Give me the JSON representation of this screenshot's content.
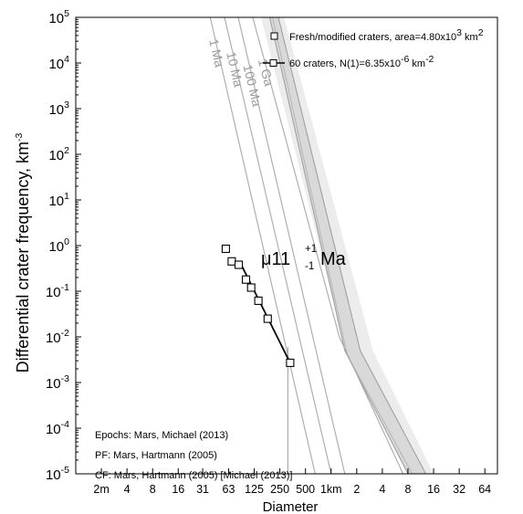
{
  "chart_data": {
    "type": "scatter",
    "xlabel": "Diameter",
    "ylabel": "Differential crater frequency, km",
    "ylabel_superscript": "-3",
    "x_scale": "log",
    "y_scale": "log",
    "xlim_km": [
      0.001,
      90
    ],
    "ylim": [
      1e-05,
      100000.0
    ],
    "x_ticks": [
      {
        "value_km": 0.002,
        "label": "2m"
      },
      {
        "value_km": 0.004,
        "label": "4"
      },
      {
        "value_km": 0.008,
        "label": "8"
      },
      {
        "value_km": 0.016,
        "label": "16"
      },
      {
        "value_km": 0.031,
        "label": "31"
      },
      {
        "value_km": 0.0625,
        "label": "63"
      },
      {
        "value_km": 0.125,
        "label": "125"
      },
      {
        "value_km": 0.25,
        "label": "250"
      },
      {
        "value_km": 0.5,
        "label": "500"
      },
      {
        "value_km": 1,
        "label": "1km"
      },
      {
        "value_km": 2,
        "label": "2"
      },
      {
        "value_km": 4,
        "label": "4"
      },
      {
        "value_km": 8,
        "label": "8"
      },
      {
        "value_km": 16,
        "label": "16"
      },
      {
        "value_km": 32,
        "label": "32"
      },
      {
        "value_km": 64,
        "label": "64"
      }
    ],
    "y_ticks": [
      {
        "exp": -5,
        "base": "10",
        "sup": "-5"
      },
      {
        "exp": -4,
        "base": "10",
        "sup": "-4"
      },
      {
        "exp": -3,
        "base": "10",
        "sup": "-3"
      },
      {
        "exp": -2,
        "base": "10",
        "sup": "-2"
      },
      {
        "exp": -1,
        "base": "10",
        "sup": "-1"
      },
      {
        "exp": 0,
        "base": "10",
        "sup": "0"
      },
      {
        "exp": 1,
        "base": "10",
        "sup": "1"
      },
      {
        "exp": 2,
        "base": "10",
        "sup": "2"
      },
      {
        "exp": 3,
        "base": "10",
        "sup": "3"
      },
      {
        "exp": 4,
        "base": "10",
        "sup": "4"
      },
      {
        "exp": 5,
        "base": "10",
        "sup": "5"
      }
    ],
    "isochrons": [
      {
        "label": "1 Ma",
        "points": [
          [
            0.038,
            100000
          ],
          [
            0.65,
            1e-05
          ]
        ]
      },
      {
        "label": "10 Ma",
        "points": [
          [
            0.056,
            100000
          ],
          [
            1.0,
            1e-05
          ]
        ]
      },
      {
        "label": "100 Ma",
        "points": [
          [
            0.081,
            100000
          ],
          [
            1.45,
            1e-05
          ]
        ]
      },
      {
        "label": "1 Ga",
        "points": [
          [
            0.12,
            100000
          ],
          [
            1.25,
            0.01
          ],
          [
            7.0,
            1e-05
          ]
        ]
      }
    ],
    "reference_band": {
      "outer_upper": [
        [
          0.15,
          100000
        ],
        [
          1.4,
          0.008
        ],
        [
          10,
          1e-05
        ]
      ],
      "outer_lower": [
        [
          0.28,
          100000
        ],
        [
          3.1,
          0.005
        ],
        [
          16,
          1e-05
        ]
      ],
      "inner_upper": [
        [
          0.19,
          100000
        ],
        [
          1.45,
          0.005
        ],
        [
          8,
          1e-05
        ]
      ],
      "inner_lower": [
        [
          0.24,
          100000
        ],
        [
          2.2,
          0.005
        ],
        [
          13,
          1e-05
        ]
      ],
      "center": [
        [
          0.205,
          100000
        ],
        [
          1.55,
          0.004
        ],
        [
          9,
          1e-05
        ]
      ]
    },
    "series": [
      {
        "name": "Fresh/modified craters, area=4.80x10",
        "name_sup": "3",
        "name_tail": " km",
        "name_tail_sup": "2",
        "marker": "open-square",
        "x_km": [
          0.058,
          0.068,
          0.082,
          0.1,
          0.115,
          0.14,
          0.18,
          0.33
        ],
        "y": [
          0.85,
          0.45,
          0.38,
          0.18,
          0.12,
          0.062,
          0.025,
          0.0027
        ]
      },
      {
        "name": "60 craters, N(1)=6.35x10",
        "name_sup": "-6",
        "name_tail": " km",
        "name_tail_sup": "-2",
        "marker": "fit-line",
        "x_km": [
          0.088,
          0.33
        ],
        "y": [
          0.38,
          0.0027
        ]
      }
    ],
    "fit_range_marker_km": 0.31,
    "model_age": {
      "prefix": "μ11",
      "plus": "+1",
      "minus": "-1",
      "unit": "Ma"
    },
    "annotations": [
      "Epochs: Mars, Michael (2013)",
      "PF: Mars, Hartmann (2005)",
      "CF: Mars, Hartmann (2005) [Michael (2013)]"
    ],
    "legend_position": "top-right",
    "grid": false
  },
  "colors": {
    "isochron": "#a9a9a9",
    "band_outer": "#ececec",
    "band_inner": "#d9d9d9",
    "data": "#000000"
  }
}
